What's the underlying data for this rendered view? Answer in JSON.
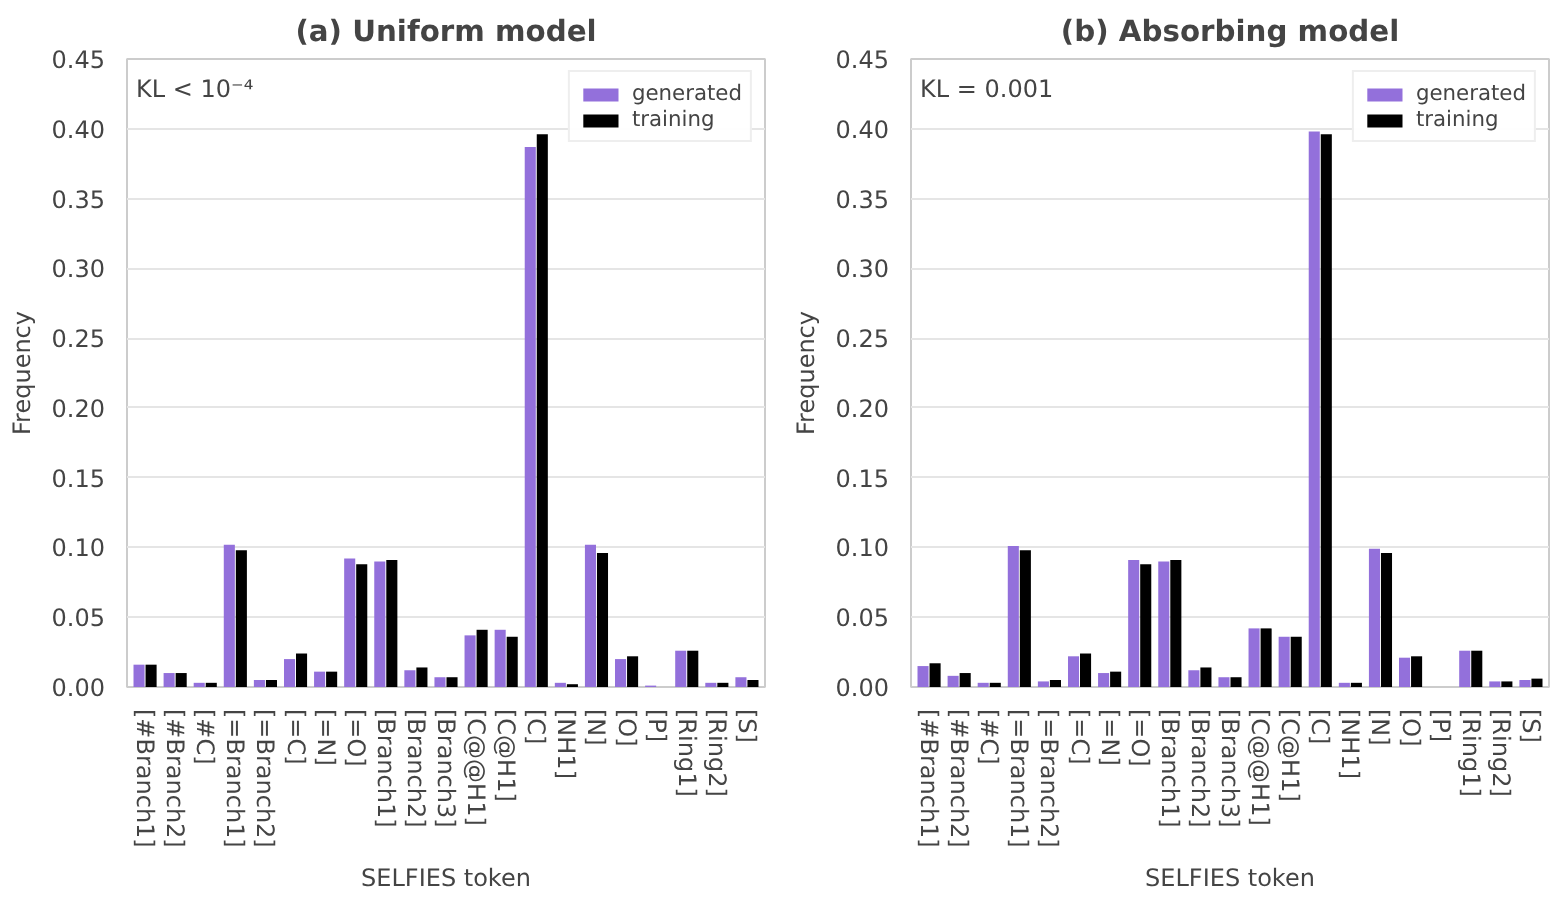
{
  "chart_data": [
    {
      "type": "bar",
      "title": "(a) Uniform model",
      "xlabel": "SELFIES token",
      "ylabel": "Frequency",
      "annotations": [
        "KL < 10⁻⁴"
      ],
      "categories": [
        "[#Branch1]",
        "[#Branch2]",
        "[#C]",
        "[=Branch1]",
        "[=Branch2]",
        "[=C]",
        "[=N]",
        "[=O]",
        "[Branch1]",
        "[Branch2]",
        "[Branch3]",
        "[C@@H1]",
        "[C@H1]",
        "[C]",
        "[NH1]",
        "[N]",
        "[O]",
        "[P]",
        "[Ring1]",
        "[Ring2]",
        "[S]"
      ],
      "series": [
        {
          "name": "generated",
          "color": "#9370db",
          "values": [
            0.016,
            0.01,
            0.003,
            0.102,
            0.005,
            0.02,
            0.011,
            0.092,
            0.09,
            0.012,
            0.007,
            0.037,
            0.041,
            0.387,
            0.003,
            0.102,
            0.02,
            0.001,
            0.026,
            0.003,
            0.007
          ]
        },
        {
          "name": "training",
          "color": "#000000",
          "values": [
            0.016,
            0.01,
            0.003,
            0.098,
            0.005,
            0.024,
            0.011,
            0.088,
            0.091,
            0.014,
            0.007,
            0.041,
            0.036,
            0.396,
            0.002,
            0.096,
            0.022,
            0.0,
            0.026,
            0.003,
            0.005
          ]
        }
      ],
      "ylim": [
        0,
        0.45
      ],
      "yticks": [
        {
          "value": 0,
          "label": "0.00"
        },
        {
          "value": 0.05,
          "label": "0.05"
        },
        {
          "value": 0.1,
          "label": "0.10"
        },
        {
          "value": 0.15,
          "label": "0.15"
        },
        {
          "value": 0.2,
          "label": "0.20"
        },
        {
          "value": 0.25,
          "label": "0.25"
        },
        {
          "value": 0.3,
          "label": "0.30"
        },
        {
          "value": 0.35,
          "label": "0.35"
        },
        {
          "value": 0.4,
          "label": "0.40"
        },
        {
          "value": 0.45,
          "label": "0.45"
        }
      ],
      "grid": "y",
      "legend": "top right"
    },
    {
      "type": "bar",
      "title": "(b) Absorbing model",
      "xlabel": "SELFIES token",
      "ylabel": "Frequency",
      "annotations": [
        "KL = 0.001"
      ],
      "categories": [
        "[#Branch1]",
        "[#Branch2]",
        "[#C]",
        "[=Branch1]",
        "[=Branch2]",
        "[=C]",
        "[=N]",
        "[=O]",
        "[Branch1]",
        "[Branch2]",
        "[Branch3]",
        "[C@@H1]",
        "[C@H1]",
        "[C]",
        "[NH1]",
        "[N]",
        "[O]",
        "[P]",
        "[Ring1]",
        "[Ring2]",
        "[S]"
      ],
      "series": [
        {
          "name": "generated",
          "color": "#9370db",
          "values": [
            0.015,
            0.008,
            0.003,
            0.101,
            0.004,
            0.022,
            0.01,
            0.091,
            0.09,
            0.012,
            0.007,
            0.042,
            0.036,
            0.398,
            0.003,
            0.099,
            0.021,
            0.0,
            0.026,
            0.004,
            0.005
          ]
        },
        {
          "name": "training",
          "color": "#000000",
          "values": [
            0.017,
            0.01,
            0.003,
            0.098,
            0.005,
            0.024,
            0.011,
            0.088,
            0.091,
            0.014,
            0.007,
            0.042,
            0.036,
            0.396,
            0.003,
            0.096,
            0.022,
            0.0,
            0.026,
            0.004,
            0.006
          ]
        }
      ],
      "ylim": [
        0,
        0.45
      ],
      "yticks": [
        {
          "value": 0,
          "label": "0.00"
        },
        {
          "value": 0.05,
          "label": "0.05"
        },
        {
          "value": 0.1,
          "label": "0.10"
        },
        {
          "value": 0.15,
          "label": "0.15"
        },
        {
          "value": 0.2,
          "label": "0.20"
        },
        {
          "value": 0.25,
          "label": "0.25"
        },
        {
          "value": 0.3,
          "label": "0.30"
        },
        {
          "value": 0.35,
          "label": "0.35"
        },
        {
          "value": 0.4,
          "label": "0.40"
        },
        {
          "value": 0.45,
          "label": "0.45"
        }
      ],
      "grid": "y",
      "legend": "top right"
    }
  ]
}
